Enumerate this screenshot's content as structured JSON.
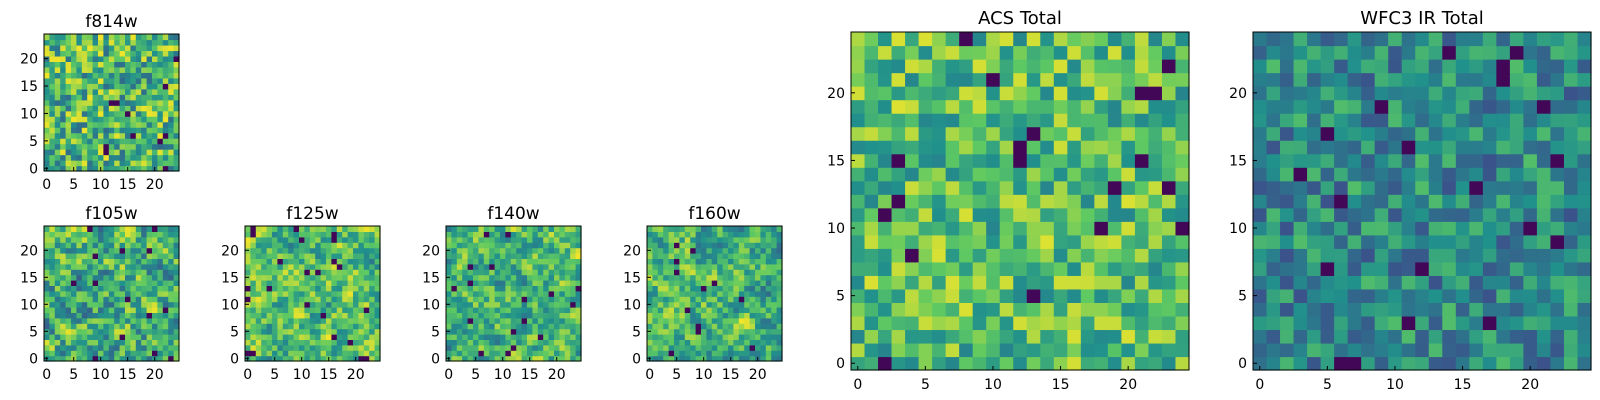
{
  "colormap": [
    "#440154",
    "#3b528b",
    "#21918c",
    "#5ec962",
    "#fde725"
  ],
  "chart_data": [
    {
      "type": "heatmap",
      "title": "f814w",
      "xlim": [
        0,
        24
      ],
      "ylim": [
        0,
        24
      ],
      "xticks": [
        0,
        5,
        10,
        15,
        20
      ],
      "yticks": [
        0,
        5,
        10,
        15,
        20
      ],
      "grid_size": 25,
      "seed": 11,
      "lo": 0.35,
      "hi": 0.98,
      "smooth": 0
    },
    {
      "type": "heatmap",
      "title": "f105w",
      "xlim": [
        0,
        24
      ],
      "ylim": [
        0,
        24
      ],
      "xticks": [
        0,
        5,
        10,
        15,
        20
      ],
      "yticks": [
        0,
        5,
        10,
        15,
        20
      ],
      "grid_size": 25,
      "seed": 23,
      "lo": 0.3,
      "hi": 0.97,
      "smooth": 1
    },
    {
      "type": "heatmap",
      "title": "f125w",
      "xlim": [
        0,
        24
      ],
      "ylim": [
        0,
        24
      ],
      "xticks": [
        0,
        5,
        10,
        15,
        20
      ],
      "yticks": [
        0,
        5,
        10,
        15,
        20
      ],
      "grid_size": 25,
      "seed": 37,
      "lo": 0.4,
      "hi": 0.98,
      "smooth": 1
    },
    {
      "type": "heatmap",
      "title": "f140w",
      "xlim": [
        0,
        24
      ],
      "ylim": [
        0,
        24
      ],
      "xticks": [
        0,
        5,
        10,
        15,
        20
      ],
      "yticks": [
        0,
        5,
        10,
        15,
        20
      ],
      "grid_size": 25,
      "seed": 41,
      "lo": 0.35,
      "hi": 0.98,
      "smooth": 1
    },
    {
      "type": "heatmap",
      "title": "f160w",
      "xlim": [
        0,
        24
      ],
      "ylim": [
        0,
        24
      ],
      "xticks": [
        0,
        5,
        10,
        15,
        20
      ],
      "yticks": [
        0,
        5,
        10,
        15,
        20
      ],
      "grid_size": 25,
      "seed": 53,
      "lo": 0.35,
      "hi": 0.98,
      "smooth": 1
    },
    {
      "type": "heatmap",
      "title": "ACS Total",
      "xlim": [
        0,
        24
      ],
      "ylim": [
        0,
        24
      ],
      "xticks": [
        0,
        5,
        10,
        15,
        20
      ],
      "yticks": [
        0,
        5,
        10,
        15,
        20
      ],
      "grid_size": 25,
      "seed": 67,
      "lo": 0.45,
      "hi": 0.95,
      "smooth": 0
    },
    {
      "type": "heatmap",
      "title": "WFC3 IR Total",
      "xlim": [
        0,
        24
      ],
      "ylim": [
        0,
        24
      ],
      "xticks": [
        0,
        5,
        10,
        15,
        20
      ],
      "yticks": [
        0,
        5,
        10,
        15,
        20
      ],
      "grid_size": 25,
      "seed": 79,
      "lo": 0.25,
      "hi": 0.7,
      "smooth": 0
    }
  ]
}
